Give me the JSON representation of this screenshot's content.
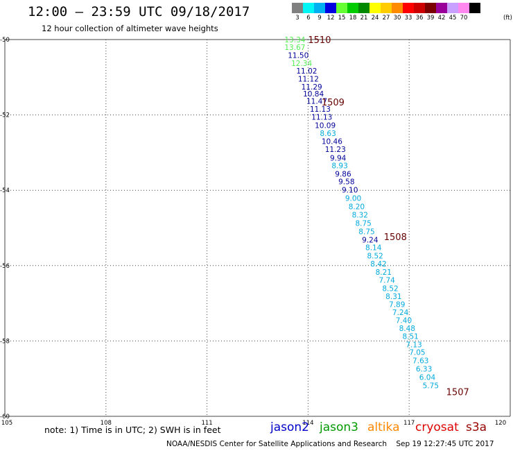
{
  "header": {
    "title": "12:00 – 23:59 UTC 09/18/2017",
    "subtitle": "12 hour collection of altimeter wave heights"
  },
  "legend": {
    "unit": "(ft)",
    "bins": [
      {
        "label": "3",
        "color": "#808080"
      },
      {
        "label": "6",
        "color": "#00f5f5"
      },
      {
        "label": "9",
        "color": "#00b0f0"
      },
      {
        "label": "12",
        "color": "#0000e0"
      },
      {
        "label": "15",
        "color": "#66ff33"
      },
      {
        "label": "18",
        "color": "#00cc00"
      },
      {
        "label": "21",
        "color": "#008800"
      },
      {
        "label": "24",
        "color": "#ffff00"
      },
      {
        "label": "27",
        "color": "#ffcc00"
      },
      {
        "label": "30",
        "color": "#ff8c00"
      },
      {
        "label": "33",
        "color": "#ff0000"
      },
      {
        "label": "36",
        "color": "#cc0000"
      },
      {
        "label": "39",
        "color": "#7a0000"
      },
      {
        "label": "42",
        "color": "#990099"
      },
      {
        "label": "45",
        "color": "#c8a0ff"
      },
      {
        "label": "70",
        "color": "#ff88ee"
      },
      {
        "label": "",
        "color": "#000000"
      }
    ]
  },
  "axes": {
    "x_ticks": [
      "105",
      "108",
      "111",
      "114",
      "117",
      "120"
    ],
    "y_ticks": [
      "-50",
      "-52",
      "-54",
      "-56",
      "-58",
      "-60"
    ],
    "lon_range": [
      105,
      120
    ],
    "lat_range": [
      -60,
      -50
    ]
  },
  "colors": {
    "green": "#55ee55",
    "navy": "#000099",
    "cyan": "#00aadd",
    "label": "#660000",
    "grid": "#444444"
  },
  "pass_labels": [
    {
      "text": "1510",
      "lon": 114.0,
      "lat": -50.0
    },
    {
      "text": "1509",
      "lon": 114.4,
      "lat": -51.66
    },
    {
      "text": "1508",
      "lon": 116.25,
      "lat": -55.23
    },
    {
      "text": "1507",
      "lon": 118.1,
      "lat": -59.35
    }
  ],
  "wave_heights": [
    {
      "value": "13.34",
      "color": "green",
      "lon": 113.3,
      "lat": -50.0
    },
    {
      "value": "13.67",
      "color": "green",
      "lon": 113.3,
      "lat": -50.2
    },
    {
      "value": "11.50",
      "color": "navy",
      "lon": 113.4,
      "lat": -50.41
    },
    {
      "value": "12.34",
      "color": "green",
      "lon": 113.5,
      "lat": -50.63
    },
    {
      "value": "11.02",
      "color": "navy",
      "lon": 113.65,
      "lat": -50.83
    },
    {
      "value": "11.12",
      "color": "navy",
      "lon": 113.7,
      "lat": -51.04
    },
    {
      "value": "11.29",
      "color": "navy",
      "lon": 113.8,
      "lat": -51.25
    },
    {
      "value": "10.84",
      "color": "navy",
      "lon": 113.85,
      "lat": -51.44
    },
    {
      "value": "11.47",
      "color": "navy",
      "lon": 113.95,
      "lat": -51.63
    },
    {
      "value": "11.13",
      "color": "navy",
      "lon": 114.05,
      "lat": -51.84
    },
    {
      "value": "11.13",
      "color": "navy",
      "lon": 114.1,
      "lat": -52.05
    },
    {
      "value": "10.09",
      "color": "navy",
      "lon": 114.2,
      "lat": -52.27
    },
    {
      "value": "8.63",
      "color": "cyan",
      "lon": 114.35,
      "lat": -52.49
    },
    {
      "value": "10.46",
      "color": "navy",
      "lon": 114.4,
      "lat": -52.7
    },
    {
      "value": "11.23",
      "color": "navy",
      "lon": 114.5,
      "lat": -52.91
    },
    {
      "value": "9.94",
      "color": "navy",
      "lon": 114.65,
      "lat": -53.14
    },
    {
      "value": "8.93",
      "color": "cyan",
      "lon": 114.7,
      "lat": -53.34
    },
    {
      "value": "9.86",
      "color": "navy",
      "lon": 114.8,
      "lat": -53.56
    },
    {
      "value": "9.58",
      "color": "navy",
      "lon": 114.9,
      "lat": -53.77
    },
    {
      "value": "9.10",
      "color": "navy",
      "lon": 115.0,
      "lat": -53.99
    },
    {
      "value": "9.00",
      "color": "cyan",
      "lon": 115.1,
      "lat": -54.21
    },
    {
      "value": "8.20",
      "color": "cyan",
      "lon": 115.2,
      "lat": -54.43
    },
    {
      "value": "8.32",
      "color": "cyan",
      "lon": 115.3,
      "lat": -54.65
    },
    {
      "value": "8.75",
      "color": "cyan",
      "lon": 115.4,
      "lat": -54.87
    },
    {
      "value": "8.75",
      "color": "cyan",
      "lon": 115.5,
      "lat": -55.09
    },
    {
      "value": "9.24",
      "color": "navy",
      "lon": 115.6,
      "lat": -55.31
    },
    {
      "value": "8.14",
      "color": "cyan",
      "lon": 115.7,
      "lat": -55.52
    },
    {
      "value": "8.52",
      "color": "cyan",
      "lon": 115.75,
      "lat": -55.74
    },
    {
      "value": "8.42",
      "color": "cyan",
      "lon": 115.85,
      "lat": -55.95
    },
    {
      "value": "8.21",
      "color": "cyan",
      "lon": 116.0,
      "lat": -56.17
    },
    {
      "value": "7.74",
      "color": "cyan",
      "lon": 116.1,
      "lat": -56.38
    },
    {
      "value": "8.52",
      "color": "cyan",
      "lon": 116.2,
      "lat": -56.6
    },
    {
      "value": "8.31",
      "color": "cyan",
      "lon": 116.3,
      "lat": -56.81
    },
    {
      "value": "7.89",
      "color": "cyan",
      "lon": 116.4,
      "lat": -57.03
    },
    {
      "value": "7.24",
      "color": "cyan",
      "lon": 116.5,
      "lat": -57.24
    },
    {
      "value": "7.40",
      "color": "cyan",
      "lon": 116.6,
      "lat": -57.45
    },
    {
      "value": "8.48",
      "color": "cyan",
      "lon": 116.7,
      "lat": -57.66
    },
    {
      "value": "8.51",
      "color": "cyan",
      "lon": 116.8,
      "lat": -57.87
    },
    {
      "value": "7.13",
      "color": "cyan",
      "lon": 116.9,
      "lat": -58.09
    },
    {
      "value": "7.05",
      "color": "cyan",
      "lon": 117.0,
      "lat": -58.3
    },
    {
      "value": "7.63",
      "color": "cyan",
      "lon": 117.1,
      "lat": -58.52
    },
    {
      "value": "6.33",
      "color": "cyan",
      "lon": 117.2,
      "lat": -58.74
    },
    {
      "value": "6.04",
      "color": "cyan",
      "lon": 117.3,
      "lat": -58.96
    },
    {
      "value": "5.75",
      "color": "cyan",
      "lon": 117.4,
      "lat": -59.18
    }
  ],
  "footer": {
    "note": "note: 1) Time is in UTC; 2) SWH is in feet",
    "satellites": [
      {
        "name": "jason2",
        "color": "#0000cc"
      },
      {
        "name": "jason3",
        "color": "#009900"
      },
      {
        "name": "altika",
        "color": "#ff8800"
      },
      {
        "name": "cryosat",
        "color": "#dd0000"
      },
      {
        "name": "s3a",
        "color": "#990000"
      }
    ],
    "credit": "NOAA/NESDIS Center for Satellite Applications and Research    Sep 19 12:27:45 UTC 2017"
  }
}
